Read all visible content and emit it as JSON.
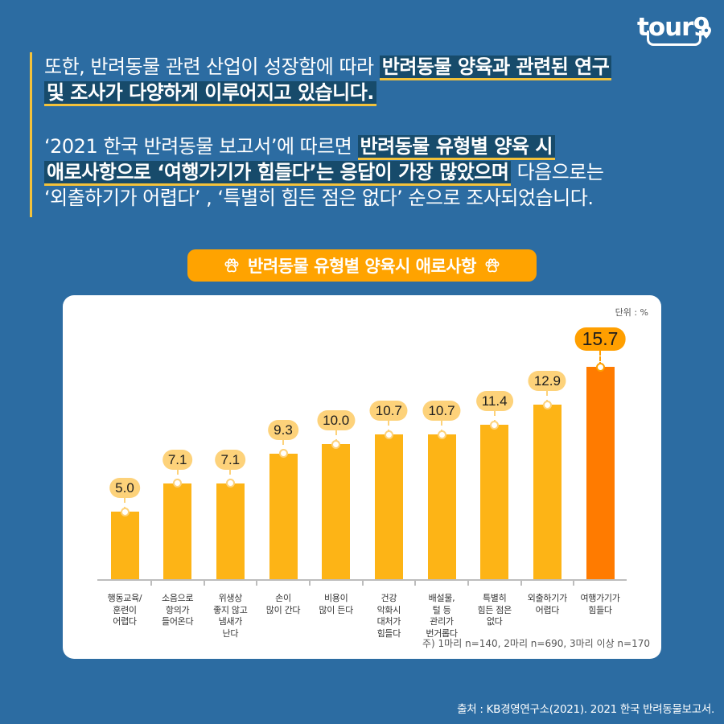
{
  "logo": {
    "text": "tour9"
  },
  "intro": {
    "paragraphs": [
      {
        "lines": [
          {
            "segments": [
              {
                "text": "또한, 반려동물 관련 산업이 성장함에 따라 ",
                "highlight": false
              },
              {
                "text": "반려동물 양육과 관련된 연구",
                "highlight": true
              }
            ]
          },
          {
            "segments": [
              {
                "text": "및 조사가 다양하게 이루어지고 있습니다.",
                "highlight": true
              }
            ]
          }
        ]
      },
      {
        "lines": [
          {
            "segments": [
              {
                "text": "‘2021 한국 반려동물 보고서’에 따르면 ",
                "highlight": false
              },
              {
                "text": "반려동물 유형별 양육 시",
                "highlight": true
              }
            ]
          },
          {
            "segments": [
              {
                "text": "애로사항으로 ‘여행가기가 힘들다’는 응답이 가장 많았으며",
                "highlight": true
              },
              {
                "text": " 다음으로는",
                "highlight": false
              }
            ]
          },
          {
            "segments": [
              {
                "text": "‘외출하기가 어렵다’ , ‘특별히 힘든 점은 없다’ 순으로 조사되었습니다.",
                "highlight": false
              }
            ]
          }
        ]
      }
    ]
  },
  "chart_title": "반려동물 유형별 양육시 애로사항",
  "icons": {
    "title_left": "paw-icon",
    "title_right": "paw-icon",
    "logo_pin": "location-pin-icon"
  },
  "chart_data": {
    "type": "bar",
    "title": "반려동물 유형별 양육시 애로사항",
    "unit_label": "단위 : %",
    "xlabel": "",
    "ylabel": "%",
    "categories": [
      "행동교육/\n훈련이\n어렵다",
      "소음으로\n항의가\n들어온다",
      "위생상\n좋지 않고\n냄새가\n난다",
      "손이\n많이 간다",
      "비용이\n많이 든다",
      "건강\n악화시\n대처가\n힘들다",
      "배설물,\n털 등\n관리가\n번거롭다",
      "특별히\n힘든 점은\n없다",
      "외출하기가\n어렵다",
      "여행가기가\n힘들다"
    ],
    "values": [
      5.0,
      7.1,
      7.1,
      9.3,
      10.0,
      10.7,
      10.7,
      11.4,
      12.9,
      15.7
    ],
    "value_labels": [
      "5.0",
      "7.1",
      "7.1",
      "9.3",
      "10.0",
      "10.7",
      "10.7",
      "11.4",
      "12.9",
      "15.7"
    ],
    "highlight_index": 9,
    "grid": false,
    "legend": "none",
    "colors": {
      "bar": "#fdb416",
      "bar_highlight": "#ff7b00",
      "label": "#fdd27a",
      "label_highlight": "#ff9f00"
    },
    "footnote": "주) 1마리 n=140, 2마리 n=690, 3마리 이상 n=170"
  },
  "source": "출처 : KB경영연구소(2021). 2021 한국 반려동물보고서."
}
